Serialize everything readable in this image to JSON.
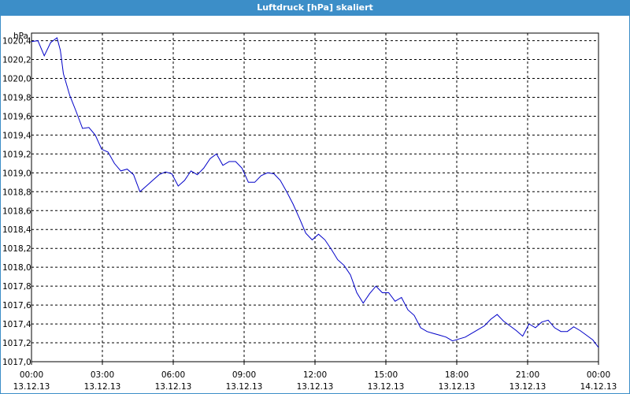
{
  "window": {
    "title": "Luftdruck [hPa] skaliert"
  },
  "chart_data": {
    "type": "line",
    "title": "Luftdruck [hPa] skaliert",
    "ylabel": "hPa",
    "xlabel": "",
    "ylim": [
      1017.0,
      1020.48
    ],
    "xlim_hours": [
      0,
      24
    ],
    "grid": true,
    "yticks": [
      "1017,0",
      "1017,2",
      "1017,4",
      "1017,6",
      "1017,8",
      "1018,0",
      "1018,2",
      "1018,4",
      "1018,6",
      "1018,8",
      "1019,0",
      "1019,2",
      "1019,4",
      "1019,6",
      "1019,8",
      "1020,0",
      "1020,2",
      "1020,4"
    ],
    "xticks": [
      {
        "time": "00:00",
        "date": "13.12.13"
      },
      {
        "time": "03:00",
        "date": "13.12.13"
      },
      {
        "time": "06:00",
        "date": "13.12.13"
      },
      {
        "time": "09:00",
        "date": "13.12.13"
      },
      {
        "time": "12:00",
        "date": "13.12.13"
      },
      {
        "time": "15:00",
        "date": "13.12.13"
      },
      {
        "time": "18:00",
        "date": "13.12.13"
      },
      {
        "time": "21:00",
        "date": "13.12.13"
      },
      {
        "time": "00:00",
        "date": "14.12.13"
      }
    ],
    "line_color": "#0000c8",
    "series": [
      {
        "x": [
          0.0,
          0.27,
          0.54,
          0.81,
          1.08,
          1.22,
          1.35,
          1.62,
          1.89,
          2.16,
          2.43,
          2.7,
          2.97,
          3.24,
          3.51,
          3.78,
          4.05,
          4.32,
          4.59,
          4.86,
          5.13,
          5.4,
          5.67,
          5.94,
          6.21,
          6.48,
          6.75,
          7.02,
          7.29,
          7.56,
          7.83,
          8.1,
          8.37,
          8.64,
          8.91,
          9.18,
          9.45,
          9.72,
          9.99,
          10.26,
          10.53,
          10.8,
          11.07,
          11.34,
          11.61,
          11.88,
          12.15,
          12.42,
          12.69,
          12.96,
          13.23,
          13.5,
          13.77,
          14.04,
          14.31,
          14.58,
          14.85,
          15.12,
          15.39,
          15.66,
          15.93,
          16.2,
          16.47,
          16.74,
          17.01,
          17.28,
          17.55,
          17.82,
          18.09,
          18.36,
          18.63,
          18.9,
          19.17,
          19.44,
          19.71,
          19.98,
          20.25,
          20.52,
          20.79,
          21.06,
          21.33,
          21.6,
          21.87,
          22.14,
          22.41,
          22.68,
          22.95,
          23.22,
          23.49,
          23.76,
          24.0
        ],
        "y": [
          1020.39,
          1020.4,
          1020.24,
          1020.38,
          1020.43,
          1020.3,
          1020.05,
          1019.82,
          1019.65,
          1019.47,
          1019.48,
          1019.4,
          1019.25,
          1019.22,
          1019.1,
          1019.02,
          1019.04,
          1018.98,
          1018.8,
          1018.86,
          1018.92,
          1018.98,
          1019.01,
          1018.99,
          1018.86,
          1018.92,
          1019.02,
          1018.98,
          1019.05,
          1019.15,
          1019.2,
          1019.08,
          1019.12,
          1019.12,
          1019.05,
          1018.9,
          1018.9,
          1018.97,
          1019.0,
          1018.99,
          1018.92,
          1018.8,
          1018.67,
          1018.52,
          1018.36,
          1018.29,
          1018.35,
          1018.29,
          1018.19,
          1018.08,
          1018.02,
          1017.92,
          1017.73,
          1017.62,
          1017.72,
          1017.8,
          1017.73,
          1017.73,
          1017.64,
          1017.68,
          1017.55,
          1017.49,
          1017.36,
          1017.32,
          1017.3,
          1017.28,
          1017.26,
          1017.22,
          1017.24,
          1017.26,
          1017.3,
          1017.34,
          1017.38,
          1017.45,
          1017.5,
          1017.43,
          1017.38,
          1017.33,
          1017.27,
          1017.4,
          1017.36,
          1017.42,
          1017.44,
          1017.36,
          1017.32,
          1017.32,
          1017.37,
          1017.33,
          1017.28,
          1017.23,
          1017.15
        ]
      }
    ]
  }
}
